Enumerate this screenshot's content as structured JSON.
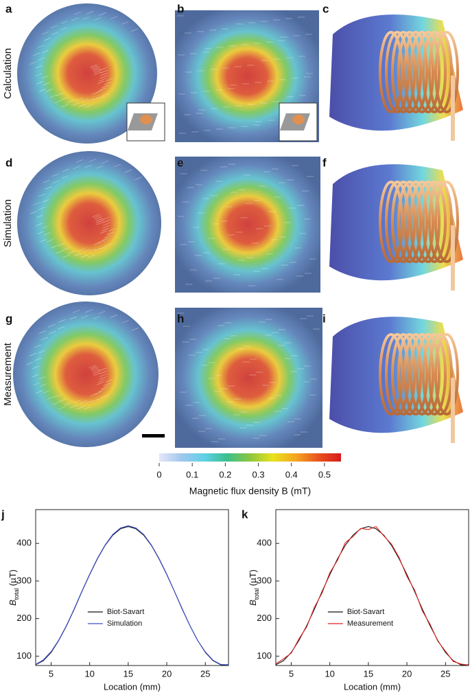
{
  "panel_labels": [
    "a",
    "b",
    "c",
    "d",
    "e",
    "f",
    "g",
    "h",
    "i"
  ],
  "row_labels": [
    "Calculation",
    "Simulation",
    "Measurement"
  ],
  "colorbar": {
    "label": "Magnetic flux density B (mT)",
    "lim": [
      0,
      0.55
    ],
    "ticks": [
      0,
      0.1,
      0.2,
      0.3,
      0.4,
      0.5
    ],
    "colors": [
      "#e6e6f7",
      "#9fc7ee",
      "#5fd0e6",
      "#3bbf8c",
      "#8cc63f",
      "#e8e21c",
      "#f5a623",
      "#e8541c",
      "#d7191c"
    ]
  },
  "chart_data": [
    {
      "type": "line",
      "label": "j",
      "x_label": "Location (mm)",
      "y_label": {
        "symbol": "B",
        "sub": "total",
        "unit": "(µT)"
      },
      "x": [
        3,
        4,
        5,
        6,
        7,
        8,
        9,
        10,
        11,
        12,
        13,
        14,
        15,
        16,
        17,
        18,
        19,
        20,
        21,
        22,
        23,
        24,
        25,
        26,
        27,
        28
      ],
      "xlim": [
        3,
        28
      ],
      "xticks": [
        5,
        10,
        15,
        20,
        25
      ],
      "ylim": [
        75,
        490
      ],
      "yticks": [
        100,
        200,
        300,
        400
      ],
      "legend": "lower center",
      "series": [
        {
          "name": "Biot-Savart",
          "color": "#111111",
          "values": [
            77,
            88,
            110,
            142,
            181,
            225,
            272,
            317,
            359,
            395,
            422,
            439,
            445,
            439,
            422,
            395,
            359,
            317,
            272,
            225,
            181,
            142,
            110,
            88,
            77,
            77
          ]
        },
        {
          "name": "Simulation",
          "color": "#3a4fd0",
          "values": [
            78,
            90,
            112,
            143,
            182,
            226,
            273,
            318,
            360,
            396,
            424,
            441,
            447,
            441,
            424,
            396,
            360,
            318,
            272,
            226,
            181,
            142,
            111,
            89,
            78,
            77
          ]
        }
      ]
    },
    {
      "type": "line",
      "label": "k",
      "x_label": "Location (mm)",
      "y_label": {
        "symbol": "B",
        "sub": "total",
        "unit": "(µT)"
      },
      "x": [
        3,
        4,
        5,
        6,
        7,
        8,
        9,
        10,
        11,
        12,
        13,
        14,
        15,
        16,
        17,
        18,
        19,
        20,
        21,
        22,
        23,
        24,
        25,
        26,
        27,
        28
      ],
      "xlim": [
        3,
        28
      ],
      "xticks": [
        5,
        10,
        15,
        20,
        25
      ],
      "ylim": [
        75,
        490
      ],
      "yticks": [
        100,
        200,
        300,
        400
      ],
      "legend": "lower center",
      "series": [
        {
          "name": "Biot-Savart",
          "color": "#111111",
          "values": [
            77,
            88,
            110,
            142,
            181,
            225,
            272,
            317,
            359,
            395,
            422,
            439,
            445,
            439,
            422,
            395,
            359,
            317,
            272,
            225,
            181,
            142,
            110,
            88,
            77,
            77
          ]
        },
        {
          "name": "Measurement",
          "color": "#e0201b",
          "values": [
            80,
            93,
            108,
            146,
            178,
            230,
            268,
            322,
            355,
            402,
            418,
            440,
            437,
            445,
            420,
            398,
            362,
            312,
            276,
            220,
            185,
            140,
            113,
            86,
            79,
            76
          ]
        }
      ]
    }
  ]
}
